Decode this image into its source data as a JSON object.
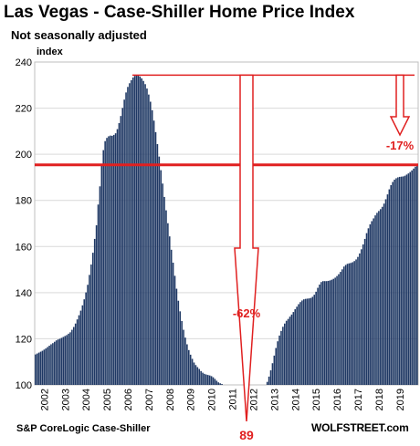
{
  "header": {
    "title": "Las Vegas - Case-Shiller Home Price Index",
    "subtitle": "Not seasonally adjusted"
  },
  "footer": {
    "source": "S&P CoreLogic Case-Shiller",
    "brand": "WOLFSTREET.com"
  },
  "chart_data": {
    "type": "bar",
    "title": "Las Vegas - Case-Shiller Home Price Index",
    "subtitle": "Not seasonally adjusted",
    "xlabel": "",
    "ylabel": "index",
    "ylim": [
      100,
      240
    ],
    "yticks": [
      100,
      120,
      140,
      160,
      180,
      200,
      220,
      240
    ],
    "xticks": [
      "2002",
      "2003",
      "2004",
      "2005",
      "2006",
      "2007",
      "2008",
      "2009",
      "2010",
      "2011",
      "2012",
      "2013",
      "2014",
      "2015",
      "2016",
      "2017",
      "2018",
      "2019"
    ],
    "frequency": "monthly",
    "x_start": "2002-01",
    "x_end": "2019-06",
    "bar_color": "#1f3864",
    "grid": true,
    "series": [
      {
        "values": [
          113.2,
          113.6,
          114.0,
          114.4,
          114.8,
          115.3,
          115.8,
          116.4,
          117.0,
          117.6,
          118.1,
          118.7,
          119.3,
          119.7,
          120.0,
          120.4,
          120.8,
          121.2,
          121.6,
          122.2,
          122.8,
          123.9,
          125.1,
          126.6,
          128.4,
          130.2,
          132.2,
          134.5,
          137.1,
          140.1,
          143.4,
          147.7,
          152.2,
          157.3,
          163.3,
          169.2,
          178.2,
          186.1,
          195.0,
          201.8,
          205.7,
          207.1,
          207.8,
          208.1,
          208.0,
          208.4,
          209.1,
          210.9,
          213.5,
          216.6,
          220.1,
          223.7,
          226.8,
          229.2,
          230.8,
          232.1,
          233.3,
          234.0,
          234.3,
          234.1,
          233.7,
          232.9,
          231.8,
          230.4,
          228.5,
          225.9,
          222.8,
          219.1,
          214.6,
          209.6,
          204.4,
          199.0,
          193.1,
          187.3,
          181.5,
          175.7,
          170.1,
          164.4,
          158.6,
          153.0,
          147.3,
          141.7,
          136.5,
          131.9,
          127.7,
          123.9,
          120.5,
          117.6,
          115.1,
          113.1,
          111.3,
          109.7,
          108.6,
          107.7,
          106.9,
          106.0,
          105.3,
          104.8,
          104.5,
          104.3,
          104.1,
          103.8,
          103.3,
          102.6,
          101.8,
          101.1,
          100.7,
          100.4,
          99.8,
          99.2,
          98.7,
          98.3,
          97.9,
          97.5,
          97.1,
          96.7,
          96.5,
          96.3,
          96.0,
          95.7,
          95.4,
          95.0,
          94.6,
          94.3,
          94.1,
          94.0,
          94.2,
          94.5,
          94.9,
          95.6,
          96.6,
          97.9,
          99.4,
          101.3,
          103.6,
          106.3,
          109.4,
          112.7,
          116.0,
          118.9,
          121.4,
          123.4,
          125.2,
          126.6,
          127.8,
          128.6,
          129.6,
          130.5,
          131.6,
          132.8,
          133.9,
          135.0,
          135.9,
          136.6,
          137.1,
          137.3,
          137.4,
          137.5,
          137.7,
          138.2,
          139.1,
          140.4,
          142.1,
          143.5,
          144.6,
          145.0,
          145.0,
          145.0,
          145.1,
          145.3,
          145.6,
          146.0,
          146.5,
          147.2,
          148.0,
          149.0,
          150.1,
          151.3,
          152.0,
          152.5,
          152.7,
          152.9,
          153.2,
          153.7,
          154.4,
          155.5,
          157.0,
          158.8,
          160.9,
          163.3,
          165.8,
          167.9,
          169.6,
          171.0,
          172.2,
          173.5,
          174.6,
          175.4,
          176.2,
          177.2,
          178.6,
          180.5,
          182.6,
          184.8,
          186.6,
          188.0,
          189.0,
          189.6,
          190.0,
          190.2,
          190.3,
          190.4,
          190.7,
          191.2,
          191.7,
          192.3,
          193.0,
          193.8,
          194.6,
          195.4
        ]
      }
    ],
    "reference_lines": [
      {
        "label": "-62%",
        "low": "89"
      },
      {
        "label": "-17%"
      }
    ],
    "annotations": [
      "-62%",
      "89",
      "-17%"
    ]
  }
}
